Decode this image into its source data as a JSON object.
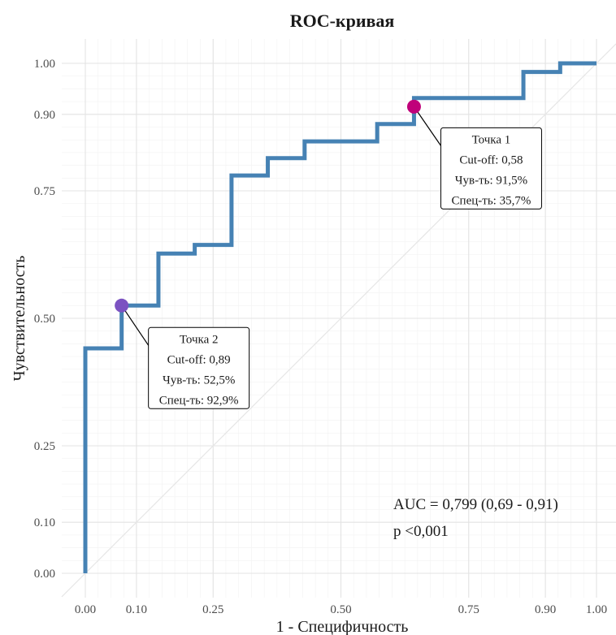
{
  "chart_data": {
    "type": "line",
    "title": "ROC-кривая",
    "xlabel": "1 - Специфичность",
    "ylabel": "Чувствительность",
    "xlim": [
      0,
      1
    ],
    "ylim": [
      0,
      1
    ],
    "x_ticks": [
      0,
      0.1,
      0.25,
      0.5,
      0.75,
      0.9,
      1
    ],
    "x_tick_labels": [
      "0.00",
      "0.10",
      "0.25",
      "0.50",
      "0.75",
      "0.90",
      "1.00"
    ],
    "y_ticks": [
      0,
      0.1,
      0.25,
      0.5,
      0.75,
      0.9,
      1
    ],
    "y_tick_labels": [
      "0.00",
      "0.10",
      "0.25",
      "0.50",
      "0.75",
      "0.90",
      "1.00"
    ],
    "grid": true,
    "series_color": "#4682b4",
    "diagonal": true,
    "series": [
      {
        "x": [
          0,
          0,
          0.071,
          0.071,
          0.143,
          0.143,
          0.214,
          0.214,
          0.286,
          0.286,
          0.357,
          0.357,
          0.429,
          0.429,
          0.571,
          0.571,
          0.643,
          0.643,
          0.857,
          0.857,
          0.929,
          0.929,
          1
        ],
        "y": [
          0,
          0.441,
          0.441,
          0.525,
          0.525,
          0.627,
          0.627,
          0.644,
          0.644,
          0.78,
          0.78,
          0.814,
          0.814,
          0.847,
          0.847,
          0.881,
          0.881,
          0.932,
          0.932,
          0.983,
          0.983,
          1,
          1
        ]
      }
    ],
    "points": [
      {
        "x": 0.643,
        "y": 0.915,
        "color": "#c0007a",
        "lines": [
          "Точка 1",
          "Cut-off: 0,58",
          "Чув-ть: 91,5%",
          "Спец-ть: 35,7%"
        ]
      },
      {
        "x": 0.071,
        "y": 0.525,
        "color": "#7b52c1",
        "lines": [
          "Точка 2",
          "Cut-off: 0,89",
          "Чув-ть: 52,5%",
          "Спец-ть: 92,9%"
        ]
      }
    ],
    "annotations": [
      "AUC = 0,799 (0,69 - 0,91)",
      "p <0,001"
    ]
  }
}
